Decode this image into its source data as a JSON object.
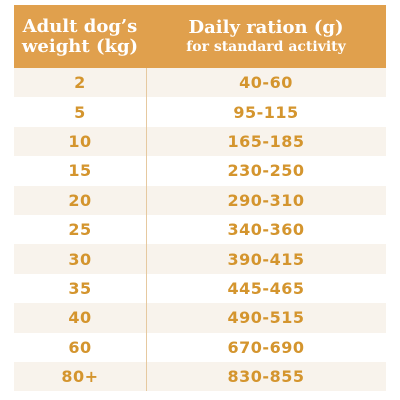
{
  "header": {
    "col1_line1": "Adult dog’s",
    "col1_line2": "weight (kg)",
    "col2_line1": "Daily ration (g)",
    "col2_line2": "for standard activity"
  },
  "rows": [
    {
      "weight": "2",
      "ration": "40-60"
    },
    {
      "weight": "5",
      "ration": "95-115"
    },
    {
      "weight": "10",
      "ration": "165-185"
    },
    {
      "weight": "15",
      "ration": "230-250"
    },
    {
      "weight": "20",
      "ration": "290-310"
    },
    {
      "weight": "25",
      "ration": "340-360"
    },
    {
      "weight": "30",
      "ration": "390-415"
    },
    {
      "weight": "35",
      "ration": "445-465"
    },
    {
      "weight": "40",
      "ration": "490-515"
    },
    {
      "weight": "60",
      "ration": "670-690"
    },
    {
      "weight": "80+",
      "ration": "830-855"
    }
  ],
  "colors": {
    "header_bg": "#e0a04d",
    "header_text": "#ffffff",
    "cell_text": "#d4952e",
    "row_alt_bg": "#f8f3ec"
  }
}
